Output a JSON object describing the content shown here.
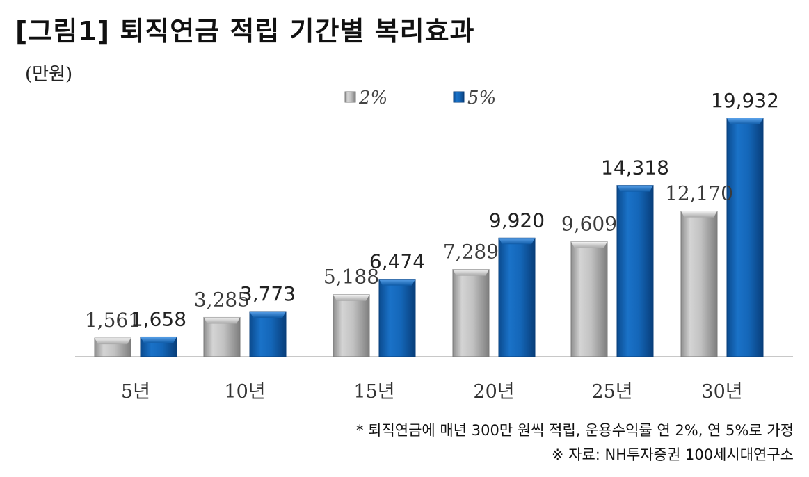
{
  "title": "[그림1] 퇴직연금 적립 기간별 복리효과",
  "unit": "(만원)",
  "notes": {
    "assumption": "* 퇴직연금에 매년 300만 원씩 적립, 운용수익률 연 2%, 연 5%로 가정",
    "source": "※ 자료: NH투자증권 100세시대연구소"
  },
  "colors": {
    "s2": "#b8b8b8",
    "s5": "#1466b8"
  },
  "chart_data": {
    "type": "bar",
    "categories": [
      "5년",
      "10년",
      "15년",
      "20년",
      "25년",
      "30년"
    ],
    "series": [
      {
        "name": "2%",
        "values": [
          1561,
          3285,
          5188,
          7289,
          9609,
          12170
        ],
        "labels": [
          "1,561",
          "3,285",
          "5,188",
          "7,289",
          "9,609",
          "12,170"
        ]
      },
      {
        "name": "5%",
        "values": [
          1658,
          3773,
          6474,
          9920,
          14318,
          19932
        ],
        "labels": [
          "1,658",
          "3,773",
          "6,474",
          "9,920",
          "14,318",
          "19,932"
        ]
      }
    ],
    "ylabel": "(만원)",
    "ylim": [
      0,
      19932
    ],
    "legend": "top-center",
    "grid": false
  }
}
